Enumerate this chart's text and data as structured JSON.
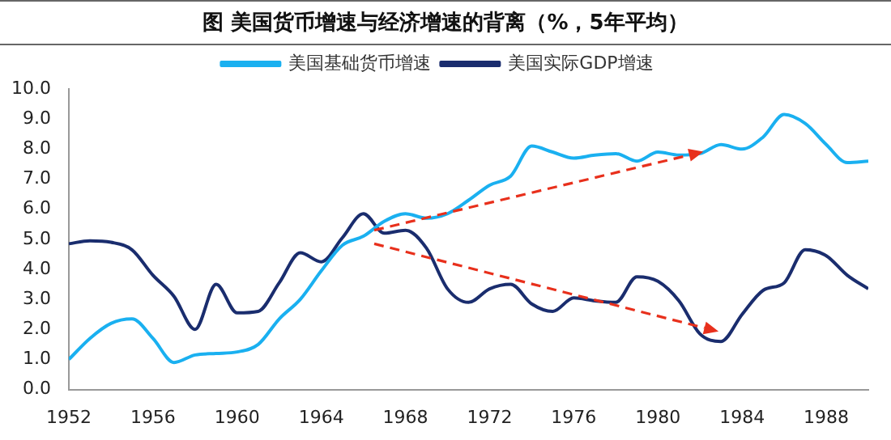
{
  "chart_data": {
    "type": "line",
    "title": "图  美国货币增速与经济增速的背离（%，5年平均）",
    "x": [
      1952,
      1953,
      1954,
      1955,
      1956,
      1957,
      1958,
      1959,
      1960,
      1961,
      1962,
      1963,
      1964,
      1965,
      1966,
      1967,
      1968,
      1969,
      1970,
      1971,
      1972,
      1973,
      1974,
      1975,
      1976,
      1977,
      1978,
      1979,
      1980,
      1981,
      1982,
      1983,
      1984,
      1985,
      1986,
      1987,
      1988,
      1989,
      1990
    ],
    "series": [
      {
        "name": "美国基础货币增速",
        "color": "#1ab0f0",
        "values": [
          1.0,
          1.7,
          2.2,
          2.35,
          1.7,
          0.9,
          1.15,
          1.2,
          1.25,
          1.5,
          2.35,
          3.0,
          3.95,
          4.8,
          5.1,
          5.6,
          5.85,
          5.7,
          5.85,
          6.3,
          6.8,
          7.1,
          8.1,
          7.9,
          7.7,
          7.8,
          7.85,
          7.6,
          7.9,
          7.8,
          7.85,
          8.15,
          8.0,
          8.4,
          9.15,
          8.85,
          8.15,
          7.55,
          7.6
        ]
      },
      {
        "name": "美国实际GDP增速",
        "color": "#1a2d6e",
        "values": [
          4.85,
          4.95,
          4.9,
          4.65,
          3.8,
          3.1,
          2.0,
          3.5,
          2.55,
          2.6,
          3.55,
          4.55,
          4.25,
          5.05,
          5.85,
          5.2,
          5.3,
          4.7,
          3.35,
          2.9,
          3.35,
          3.5,
          2.85,
          2.6,
          3.05,
          2.95,
          2.9,
          3.75,
          3.6,
          2.95,
          1.85,
          1.6,
          2.5,
          3.3,
          3.55,
          4.65,
          4.45,
          3.8,
          3.35
        ]
      }
    ],
    "xlim": [
      1952,
      1990
    ],
    "xticks": [
      1952,
      1956,
      1960,
      1964,
      1968,
      1972,
      1976,
      1980,
      1984,
      1988
    ],
    "ylim": [
      0,
      10
    ],
    "yticks": [
      {
        "value": 0,
        "label": "0.0"
      },
      {
        "value": 1,
        "label": "1.0"
      },
      {
        "value": 2,
        "label": "2.0"
      },
      {
        "value": 3,
        "label": "3.0"
      },
      {
        "value": 4,
        "label": "4.0"
      },
      {
        "value": 5,
        "label": "5.0"
      },
      {
        "value": 6,
        "label": "6.0"
      },
      {
        "value": 7,
        "label": "7.0"
      },
      {
        "value": 8,
        "label": "8.0"
      },
      {
        "value": 9,
        "label": "9.0"
      },
      {
        "value": 10,
        "label": "10.0"
      }
    ],
    "grid": false,
    "legend": "top",
    "marker": "none",
    "line_style": "solid"
  }
}
